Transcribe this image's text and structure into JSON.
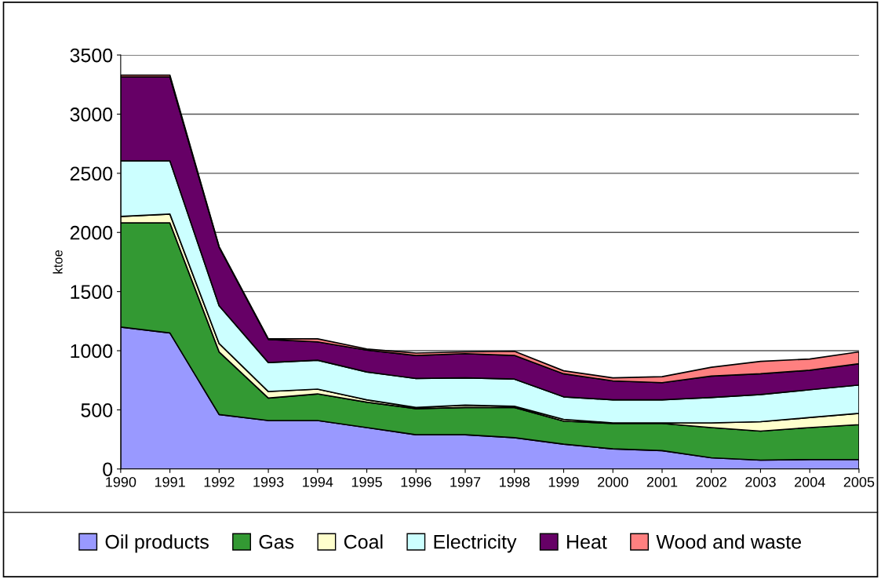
{
  "chart_data": {
    "type": "area",
    "stacked": true,
    "ylabel": "ktoe",
    "categories": [
      "1990",
      "1991",
      "1992",
      "1993",
      "1994",
      "1995",
      "1996",
      "1997",
      "1998",
      "1999",
      "2000",
      "2001",
      "2002",
      "2003",
      "2004",
      "2005"
    ],
    "series": [
      {
        "name": "Oil products",
        "color": "#9999ff",
        "values": [
          1200,
          1150,
          460,
          410,
          410,
          350,
          290,
          290,
          265,
          210,
          170,
          155,
          95,
          75,
          80,
          80
        ]
      },
      {
        "name": "Gas",
        "color": "#339933",
        "values": [
          880,
          930,
          530,
          190,
          225,
          215,
          220,
          230,
          255,
          195,
          215,
          230,
          255,
          245,
          270,
          295
        ]
      },
      {
        "name": "Coal",
        "color": "#ffffcc",
        "values": [
          55,
          75,
          70,
          55,
          40,
          20,
          10,
          20,
          10,
          15,
          5,
          5,
          40,
          80,
          85,
          95
        ]
      },
      {
        "name": "Electricity",
        "color": "#ccffff",
        "values": [
          470,
          450,
          320,
          245,
          245,
          235,
          245,
          230,
          230,
          190,
          195,
          195,
          215,
          230,
          235,
          240
        ]
      },
      {
        "name": "Heat",
        "color": "#660066",
        "values": [
          710,
          710,
          495,
          195,
          155,
          185,
          195,
          205,
          200,
          195,
          160,
          145,
          180,
          175,
          165,
          180
        ]
      },
      {
        "name": "Wood and waste",
        "color": "#ff8080",
        "values": [
          15,
          15,
          5,
          5,
          25,
          10,
          20,
          15,
          35,
          25,
          25,
          50,
          75,
          105,
          95,
          100
        ]
      }
    ],
    "ylim": [
      0,
      3500
    ],
    "yticks": [
      0,
      500,
      1000,
      1500,
      2000,
      2500,
      3000,
      3500
    ],
    "grid": "y",
    "legend": "bottom"
  }
}
